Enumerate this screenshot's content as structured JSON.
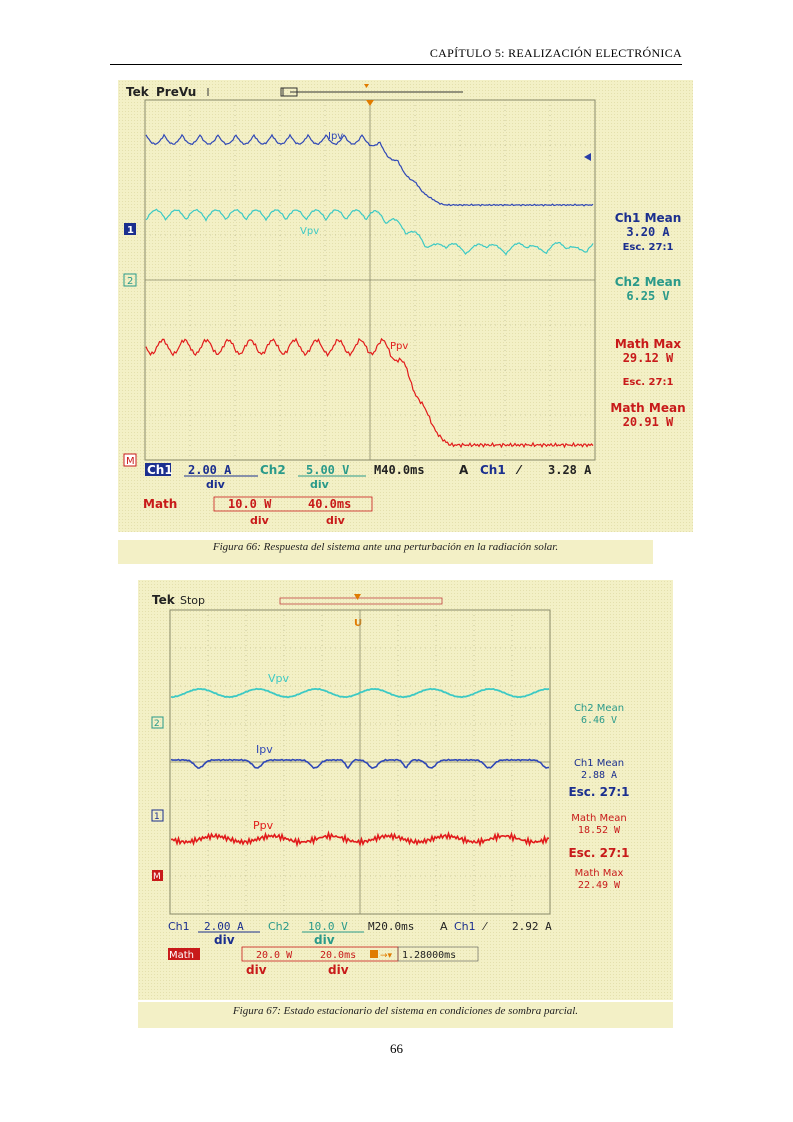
{
  "header": {
    "chapter": "CAPÍTULO 5: REALIZACIÓN ELECTRÓNICA"
  },
  "figure66": {
    "brand": "Tek",
    "state": "PreVu",
    "trace_labels": {
      "ipv": "Ipv",
      "vpv": "Vpv",
      "ppv": "Ppv"
    },
    "channel_markers": {
      "ch1": "1",
      "ch2": "2",
      "math": "M"
    },
    "readouts": {
      "ch1_mean_label": "Ch1 Mean",
      "ch1_mean_value": "3.20 A",
      "ch1_esc": "Esc. 27:1",
      "ch2_mean_label": "Ch2 Mean",
      "ch2_mean_value": "6.25 V",
      "math_max_label": "Math Max",
      "math_max_value": "29.12 W",
      "math_esc": "Esc.  27:1",
      "math_mean_label": "Math Mean",
      "math_mean_value": "20.91 W"
    },
    "status": {
      "ch1": "Ch1",
      "ch1_scale": "2.00 A",
      "ch2": "Ch2",
      "ch2_scale": "5.00 V",
      "timebase": "M40.0ms",
      "trig_mode": "A",
      "trig_src": "Ch1",
      "trig_level": "3.28 A",
      "div1": "div",
      "div2": "div",
      "math": "Math",
      "math_scale": "10.0 W",
      "math_time": "40.0ms",
      "div3": "div",
      "div4": "div"
    },
    "caption": "Figura 66: Respuesta del sistema ante una perturbación en la radiación solar."
  },
  "figure67": {
    "brand": "Tek",
    "state": "Stop",
    "trace_labels": {
      "vpv": "Vpv",
      "ipv": "Ipv",
      "ppv": "Ppv"
    },
    "channel_markers": {
      "ch2": "2",
      "ch1": "1",
      "math": "M"
    },
    "readouts": {
      "ch2_mean_label": "Ch2 Mean",
      "ch2_mean_value": "6.46 V",
      "ch1_mean_label": "Ch1 Mean",
      "ch1_mean_value": "2.88 A",
      "ch1_esc": "Esc. 27:1",
      "math_mean_label": "Math Mean",
      "math_mean_value": "18.52 W",
      "math_esc": "Esc.  27:1",
      "math_max_label": "Math Max",
      "math_max_value": "22.49 W"
    },
    "status": {
      "ch1": "Ch1",
      "ch1_scale": "2.00 A",
      "ch2": "Ch2",
      "ch2_scale": "10.0 V",
      "timebase": "M20.0ms",
      "trig_mode": "A",
      "trig_src": "Ch1",
      "trig_level": "2.92 A",
      "div1": "div",
      "div2": "div",
      "math": "Math",
      "math_scale": "20.0 W",
      "math_time": "20.0ms",
      "trig_offset": "1.28000ms",
      "div3": "div",
      "div4": "div"
    },
    "caption": "Figura 67: Estado estacionario del sistema en condiciones de sombra parcial."
  },
  "page_number": "66"
}
